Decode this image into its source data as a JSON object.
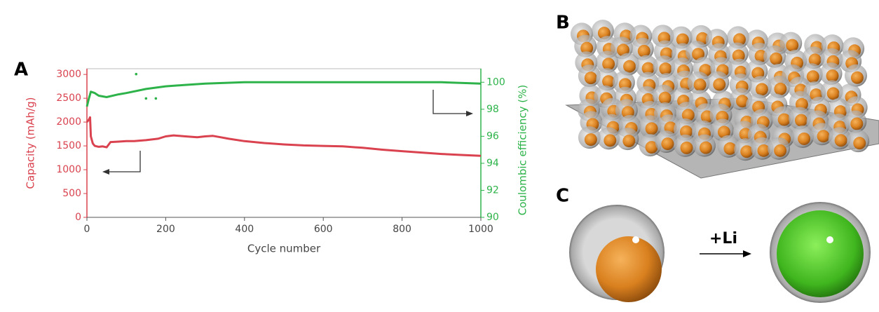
{
  "chart_data": {
    "type": "line",
    "panel_labels": [
      "A",
      "B",
      "C"
    ],
    "annotation": "+Li",
    "xlabel": "Cycle number",
    "ylabel": "Capacity (mAh/g)",
    "y2label": "Coulombic efficiency (%)",
    "xlim": [
      0,
      1000
    ],
    "xticks": [
      0,
      200,
      400,
      600,
      800,
      1000
    ],
    "ylim": [
      0,
      3120
    ],
    "yticks": [
      0,
      500,
      1000,
      1500,
      2000,
      2500,
      3000
    ],
    "y2lim": [
      90,
      101
    ],
    "y2ticks": [
      90,
      92,
      94,
      96,
      98,
      100
    ],
    "series": [
      {
        "color": "#d9424e",
        "axis": "y",
        "x": [
          0,
          5,
          8,
          10,
          15,
          20,
          30,
          40,
          50,
          60,
          80,
          100,
          120,
          150,
          180,
          200,
          220,
          250,
          280,
          300,
          320,
          340,
          360,
          400,
          450,
          500,
          550,
          600,
          650,
          700,
          750,
          800,
          850,
          900,
          950,
          1000
        ],
        "values": [
          2000,
          2050,
          2100,
          1700,
          1550,
          1500,
          1480,
          1490,
          1470,
          1580,
          1590,
          1600,
          1600,
          1620,
          1650,
          1700,
          1720,
          1700,
          1680,
          1700,
          1710,
          1680,
          1650,
          1600,
          1560,
          1530,
          1510,
          1500,
          1490,
          1460,
          1420,
          1390,
          1360,
          1330,
          1310,
          1290
        ]
      },
      {
        "color": "#2db34a",
        "axis": "y2",
        "x": [
          0,
          5,
          10,
          20,
          30,
          50,
          80,
          100,
          150,
          200,
          250,
          300,
          400,
          500,
          600,
          700,
          800,
          900,
          1000
        ],
        "values": [
          98.2,
          98.8,
          99.3,
          99.2,
          99.0,
          98.9,
          99.1,
          99.2,
          99.5,
          99.7,
          99.8,
          99.9,
          100,
          100,
          100,
          100,
          100,
          100,
          99.9
        ]
      },
      {
        "color": "#2db34a",
        "axis": "y2",
        "type": "scatter",
        "x": [
          125,
          150,
          175
        ],
        "values": [
          100.6,
          98.8,
          98.8
        ]
      }
    ]
  }
}
